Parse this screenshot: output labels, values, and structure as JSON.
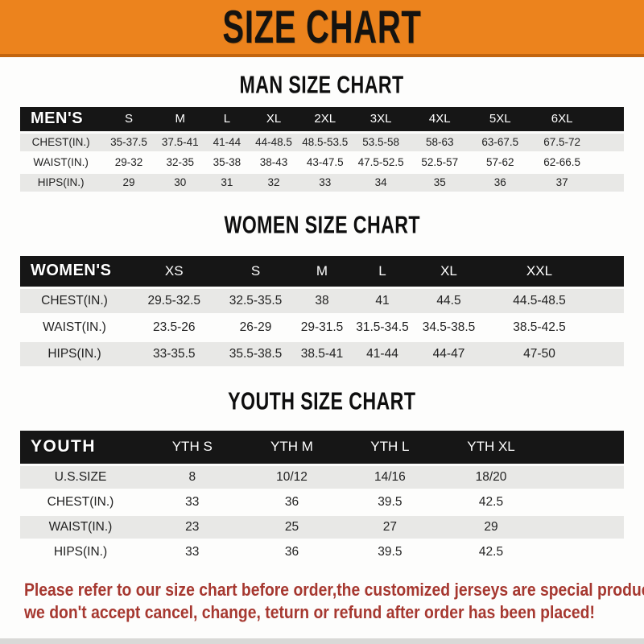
{
  "banner": {
    "title": "SIZE CHART"
  },
  "colors": {
    "banner-bg": "#ec831d",
    "banner-border": "#c2650f",
    "bar-color": "#161616",
    "stripe": "#e8e8e6",
    "footer-color": "#a63830",
    "strip": "#d9d9d7"
  },
  "sections": [
    {
      "title": "MAN SIZE CHART",
      "header_label": "MEN'S",
      "columns": [
        "S",
        "M",
        "L",
        "XL",
        "2XL",
        "3XL",
        "4XL",
        "5XL",
        "6XL"
      ],
      "rows": [
        {
          "label": "CHEST(IN.)",
          "values": [
            "35-37.5",
            "37.5-41",
            "41-44",
            "44-48.5",
            "48.5-53.5",
            "53.5-58",
            "58-63",
            "63-67.5",
            "67.5-72"
          ]
        },
        {
          "label": "WAIST(IN.)",
          "values": [
            "29-32",
            "32-35",
            "35-38",
            "38-43",
            "43-47.5",
            "47.5-52.5",
            "52.5-57",
            "57-62",
            "62-66.5"
          ]
        },
        {
          "label": "HIPS(IN.)",
          "values": [
            "29",
            "30",
            "31",
            "32",
            "33",
            "34",
            "35",
            "36",
            "37"
          ]
        }
      ]
    },
    {
      "title": "WOMEN SIZE CHART",
      "header_label": "WOMEN'S",
      "columns": [
        "XS",
        "S",
        "M",
        "L",
        "XL",
        "XXL"
      ],
      "rows": [
        {
          "label": "CHEST(IN.)",
          "values": [
            "29.5-32.5",
            "32.5-35.5",
            "38",
            "41",
            "44.5",
            "44.5-48.5"
          ]
        },
        {
          "label": "WAIST(IN.)",
          "values": [
            "23.5-26",
            "26-29",
            "29-31.5",
            "31.5-34.5",
            "34.5-38.5",
            "38.5-42.5"
          ]
        },
        {
          "label": "HIPS(IN.)",
          "values": [
            "33-35.5",
            "35.5-38.5",
            "38.5-41",
            "41-44",
            "44-47",
            "47-50"
          ]
        }
      ]
    },
    {
      "title": "YOUTH SIZE CHART",
      "header_label": "YOUTH",
      "columns": [
        "YTH S",
        "YTH M",
        "YTH L",
        "YTH XL"
      ],
      "rows": [
        {
          "label": "U.S.SIZE",
          "values": [
            "8",
            "10/12",
            "14/16",
            "18/20"
          ]
        },
        {
          "label": "CHEST(IN.)",
          "values": [
            "33",
            "36",
            "39.5",
            "42.5"
          ]
        },
        {
          "label": "WAIST(IN.)",
          "values": [
            "23",
            "25",
            "27",
            "29"
          ]
        },
        {
          "label": "HIPS(IN.)",
          "values": [
            "33",
            "36",
            "39.5",
            "42.5"
          ]
        }
      ]
    }
  ],
  "footer": {
    "line1": "Please refer to our size chart before order,the customized jerseys are special products,",
    "line2": "we don't accept cancel, change, teturn or refund after order has been placed!"
  }
}
